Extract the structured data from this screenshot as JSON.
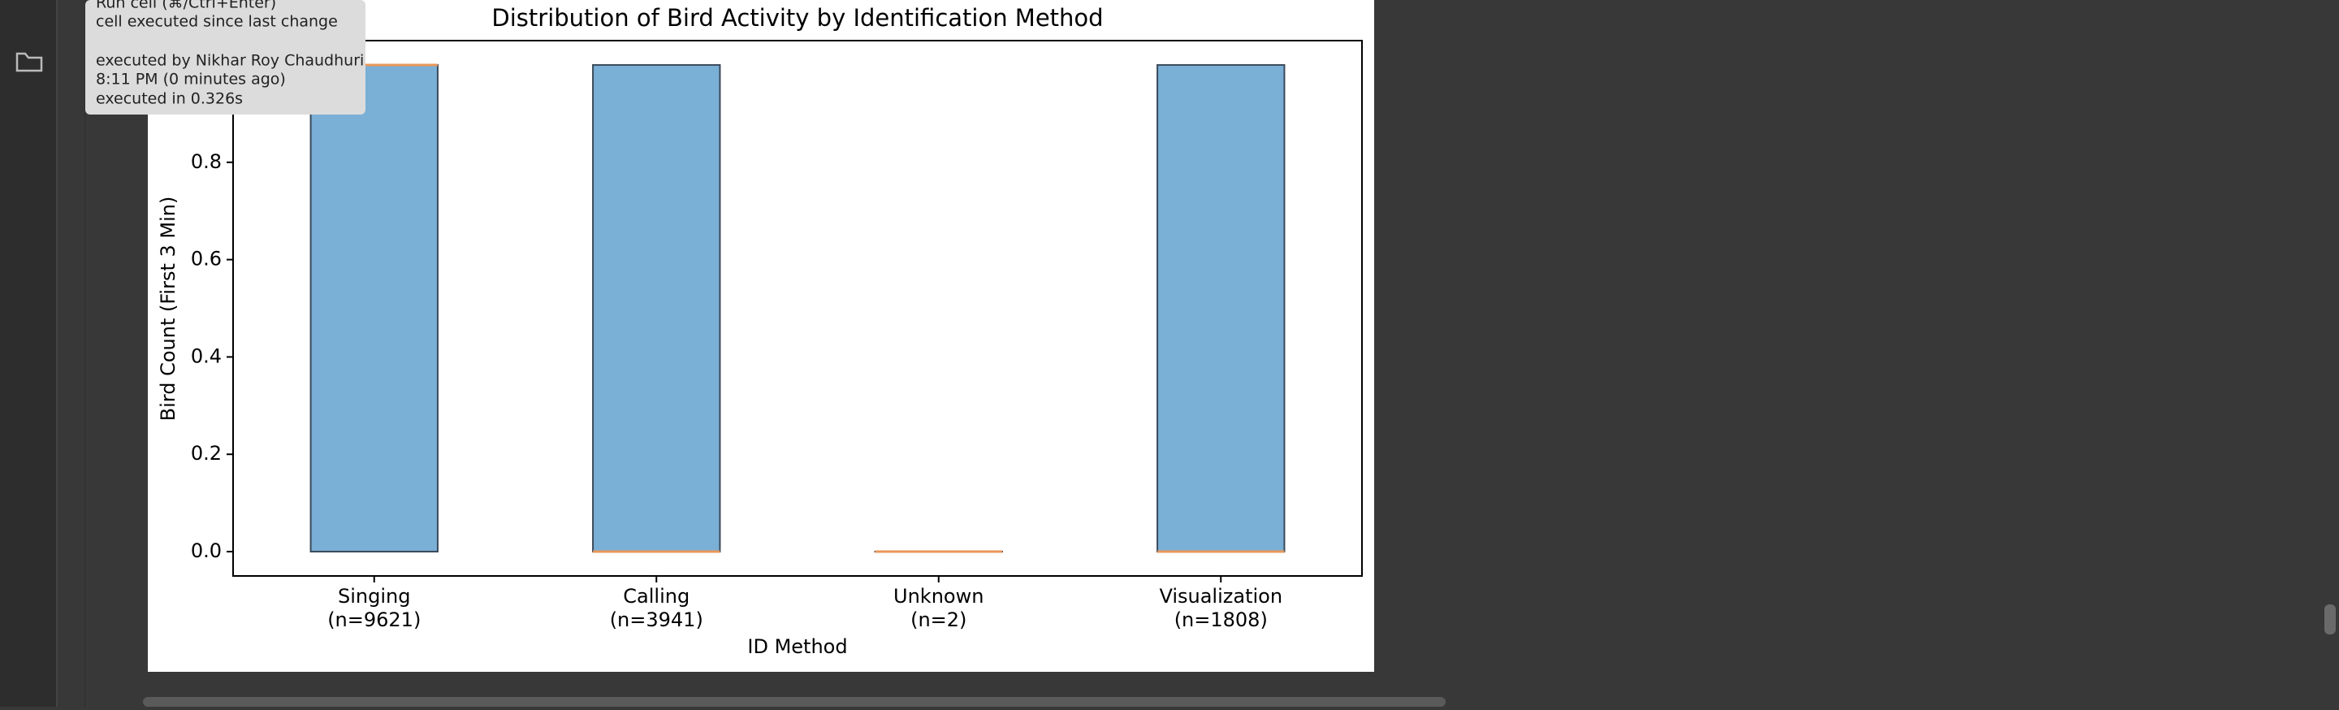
{
  "tooltip": {
    "lines": [
      "Run cell (⌘/Ctrl+Enter)",
      "cell executed since last change",
      "executed by Nikhar Roy Chaudhuri",
      "8:11 PM (0 minutes ago)",
      "executed in 0.326s"
    ]
  },
  "chart_data": {
    "type": "box",
    "title": "Distribution of Bird Activity by Identification Method",
    "x_label": "ID Method",
    "y_label": "Bird Count (First 3 Min)",
    "categories": [
      "Singing",
      "Calling",
      "Unknown",
      "Visualization"
    ],
    "category_counts": [
      "(n=9621)",
      "(n=3941)",
      "(n=2)",
      "(n=1808)"
    ],
    "boxes": [
      {
        "min": 0,
        "q1": 0,
        "median": 1,
        "q3": 1,
        "max": 1
      },
      {
        "min": 0,
        "q1": 0,
        "median": 0,
        "q3": 1,
        "max": 1
      },
      {
        "min": 0,
        "q1": 0,
        "median": 0,
        "q3": 0,
        "max": 0
      },
      {
        "min": 0,
        "q1": 0,
        "median": 0,
        "q3": 1,
        "max": 1
      }
    ],
    "color": "#7aafd6",
    "median_color": "#e8975a",
    "ylim": [
      -0.05,
      1.05
    ],
    "yticks": [
      {
        "value": 0,
        "label": "0.0"
      },
      0.2,
      0.4,
      0.6,
      0.8
    ]
  }
}
